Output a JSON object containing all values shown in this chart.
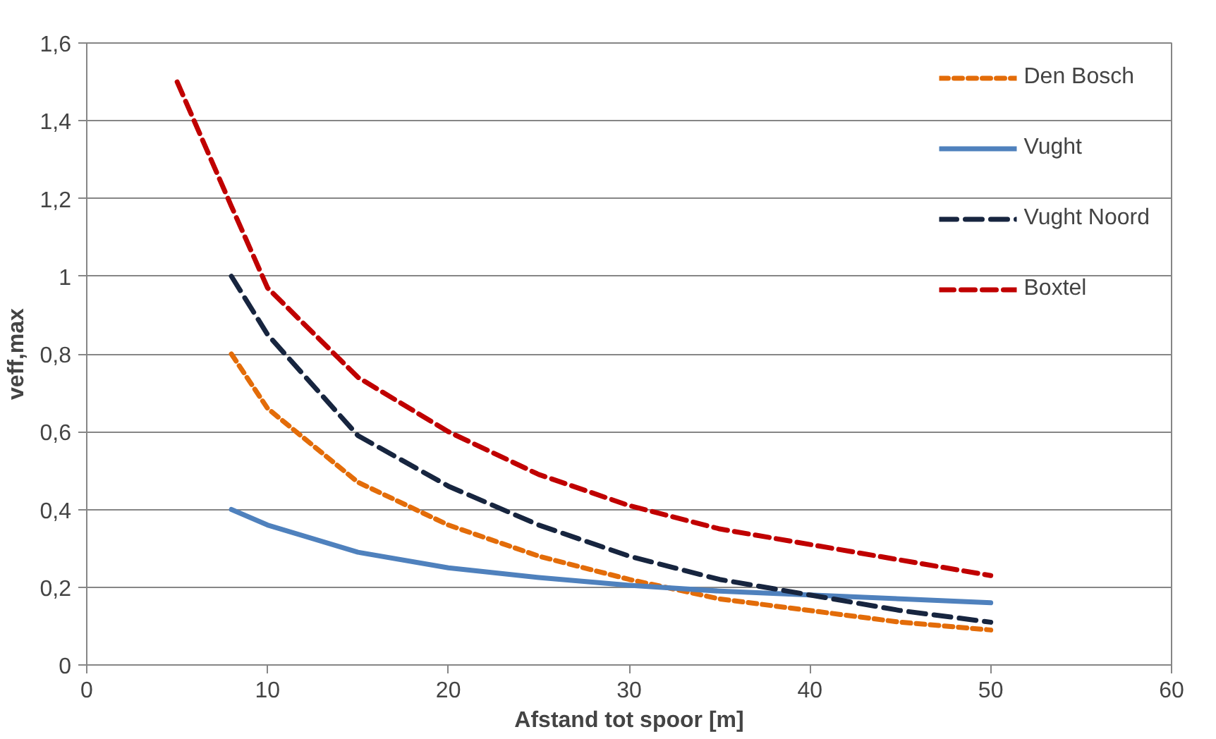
{
  "chart_data": {
    "type": "line",
    "xlabel": "Afstand tot spoor [m]",
    "ylabel": "veff,max",
    "xlim": [
      0,
      60
    ],
    "xticks": [
      0,
      10,
      20,
      30,
      40,
      50,
      60
    ],
    "ylim": [
      0,
      1.6
    ],
    "yticks": [
      {
        "value": 0,
        "label": "0"
      },
      {
        "value": 0.2,
        "label": "0,2"
      },
      {
        "value": 0.4,
        "label": "0,4"
      },
      {
        "value": 0.6,
        "label": "0,6"
      },
      {
        "value": 0.8,
        "label": "0,8"
      },
      {
        "value": 1,
        "label": "1"
      },
      {
        "value": 1.2,
        "label": "1,2"
      },
      {
        "value": 1.4,
        "label": "1,4"
      },
      {
        "value": 1.6,
        "label": "1,6"
      }
    ],
    "grid": "y",
    "legend": "top right",
    "marker": "none",
    "series": [
      {
        "name": "Den Bosch",
        "color": "#e36c09",
        "line_style": "dashed",
        "x": [
          8,
          10,
          15,
          20,
          25,
          30,
          35,
          40,
          45,
          50
        ],
        "values": [
          0.8,
          0.66,
          0.47,
          0.36,
          0.28,
          0.22,
          0.17,
          0.14,
          0.11,
          0.09
        ]
      },
      {
        "name": "Vught",
        "color": "#4f81bd",
        "line_style": "solid",
        "x": [
          8,
          10,
          15,
          20,
          25,
          30,
          35,
          40,
          45,
          50
        ],
        "values": [
          0.4,
          0.36,
          0.29,
          0.25,
          0.225,
          0.205,
          0.19,
          0.18,
          0.17,
          0.16
        ]
      },
      {
        "name": "Vught Noord",
        "color": "#17253f",
        "line_style": "dashed",
        "x": [
          8,
          10,
          15,
          20,
          25,
          30,
          35,
          40,
          45,
          50
        ],
        "values": [
          1.0,
          0.85,
          0.59,
          0.46,
          0.36,
          0.28,
          0.22,
          0.18,
          0.14,
          0.11
        ]
      },
      {
        "name": "Boxtel",
        "color": "#c00000",
        "line_style": "dashed",
        "x": [
          5,
          8,
          10,
          15,
          20,
          25,
          30,
          35,
          40,
          45,
          50
        ],
        "values": [
          1.5,
          1.18,
          0.97,
          0.74,
          0.6,
          0.49,
          0.41,
          0.35,
          0.31,
          0.27,
          0.23
        ]
      }
    ]
  }
}
